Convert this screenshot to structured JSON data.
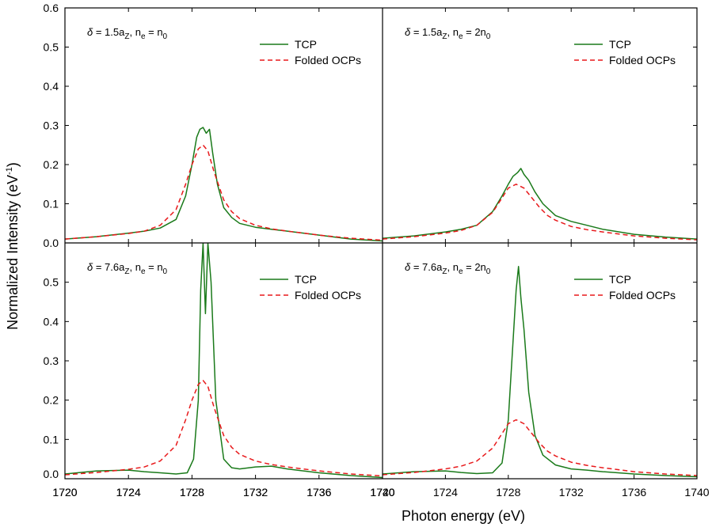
{
  "figure": {
    "xlabel": "Photon energy (eV)",
    "ylabel": "Normalized Intensity (eV",
    "ylabel_sup": "-1",
    "ylabel_close": ")"
  },
  "chart_data": [
    {
      "type": "line",
      "panel": "top-left",
      "annotation": "δ = 1.5a_Z, n_e = n_0",
      "annotation_parts": {
        "delta": "δ",
        "p1": " = 1.5a",
        "s1": "Z",
        "p2": ", n",
        "s2": "e",
        "p3": " = n",
        "s3": "0"
      },
      "xlim": [
        1720,
        1740
      ],
      "ylim": [
        0.0,
        0.6
      ],
      "xticks": [
        "1720",
        "1724",
        "1728",
        "1732",
        "1736",
        "1740"
      ],
      "yticks": [
        "0.0",
        "0.1",
        "0.2",
        "0.3",
        "0.4",
        "0.5",
        "0.6"
      ],
      "legend": {
        "position": "top-right",
        "entries": [
          "TCP",
          "Folded OCPs"
        ]
      },
      "series": [
        {
          "name": "TCP",
          "color": "#1a7a1a",
          "style": "solid",
          "x": [
            1720,
            1722,
            1724,
            1725,
            1726,
            1727,
            1727.6,
            1728.0,
            1728.3,
            1728.5,
            1728.7,
            1728.9,
            1729.1,
            1729.3,
            1729.6,
            1730.0,
            1730.5,
            1731,
            1732,
            1733,
            1734,
            1736,
            1738,
            1740
          ],
          "y": [
            0.01,
            0.016,
            0.025,
            0.03,
            0.038,
            0.06,
            0.12,
            0.2,
            0.27,
            0.29,
            0.295,
            0.28,
            0.29,
            0.23,
            0.15,
            0.09,
            0.065,
            0.05,
            0.04,
            0.035,
            0.03,
            0.02,
            0.01,
            0.005
          ]
        },
        {
          "name": "Folded OCPs",
          "color": "#e8191b",
          "style": "dashed",
          "x": [
            1720,
            1722,
            1724,
            1725,
            1726,
            1727,
            1727.6,
            1728.0,
            1728.4,
            1728.7,
            1729.0,
            1729.4,
            1730.0,
            1730.5,
            1731,
            1732,
            1733,
            1734,
            1736,
            1738,
            1740
          ],
          "y": [
            0.01,
            0.016,
            0.024,
            0.03,
            0.045,
            0.085,
            0.15,
            0.2,
            0.24,
            0.25,
            0.235,
            0.18,
            0.11,
            0.08,
            0.062,
            0.045,
            0.036,
            0.03,
            0.02,
            0.012,
            0.007
          ]
        }
      ]
    },
    {
      "type": "line",
      "panel": "top-right",
      "annotation": "δ = 1.5a_Z, n_e = 2n_0",
      "annotation_parts": {
        "delta": "δ",
        "p1": " = 1.5a",
        "s1": "Z",
        "p2": ", n",
        "s2": "e",
        "p3": " = 2n",
        "s3": "0"
      },
      "xlim": [
        1720,
        1740
      ],
      "ylim": [
        0.0,
        0.6
      ],
      "legend": {
        "position": "top-right",
        "entries": [
          "TCP",
          "Folded OCPs"
        ]
      },
      "series": [
        {
          "name": "TCP",
          "color": "#1a7a1a",
          "style": "solid",
          "x": [
            1720,
            1722,
            1724,
            1725,
            1726,
            1727,
            1727.6,
            1728.0,
            1728.3,
            1728.6,
            1728.8,
            1729.0,
            1729.3,
            1729.7,
            1730.2,
            1731,
            1732,
            1733,
            1734,
            1736,
            1738,
            1740
          ],
          "y": [
            0.012,
            0.018,
            0.028,
            0.035,
            0.045,
            0.08,
            0.12,
            0.15,
            0.17,
            0.18,
            0.19,
            0.175,
            0.16,
            0.13,
            0.1,
            0.07,
            0.055,
            0.045,
            0.035,
            0.022,
            0.015,
            0.01
          ]
        },
        {
          "name": "Folded OCPs",
          "color": "#e8191b",
          "style": "dashed",
          "x": [
            1720,
            1722,
            1724,
            1725,
            1726,
            1727,
            1727.6,
            1728.0,
            1728.5,
            1729.0,
            1729.5,
            1730.0,
            1730.5,
            1731,
            1732,
            1733,
            1734,
            1736,
            1738,
            1740
          ],
          "y": [
            0.01,
            0.016,
            0.025,
            0.032,
            0.045,
            0.078,
            0.115,
            0.14,
            0.15,
            0.14,
            0.115,
            0.09,
            0.07,
            0.058,
            0.042,
            0.034,
            0.028,
            0.018,
            0.012,
            0.008
          ]
        }
      ]
    },
    {
      "type": "line",
      "panel": "bottom-left",
      "annotation": "δ = 7.6a_Z, n_e = n_0",
      "annotation_parts": {
        "delta": "δ",
        "p1": " = 7.6a",
        "s1": "Z",
        "p2": ", n",
        "s2": "e",
        "p3": " = n",
        "s3": "0"
      },
      "xlim": [
        1720,
        1740
      ],
      "ylim": [
        0.0,
        0.6
      ],
      "xticks": [
        "1720",
        "1724",
        "1728",
        "1732",
        "1736",
        "1740"
      ],
      "yticks": [
        "0.0",
        "0.1",
        "0.2",
        "0.3",
        "0.4",
        "0.5"
      ],
      "legend": {
        "position": "top-right",
        "entries": [
          "TCP",
          "Folded OCPs"
        ]
      },
      "series": [
        {
          "name": "TCP",
          "color": "#1a7a1a",
          "style": "solid",
          "x": [
            1720,
            1722,
            1724,
            1725,
            1726,
            1727,
            1727.7,
            1728.1,
            1728.4,
            1728.55,
            1728.7,
            1728.85,
            1729.0,
            1729.2,
            1729.5,
            1730.0,
            1730.5,
            1731,
            1732,
            1733,
            1734,
            1736,
            1738,
            1740
          ],
          "y": [
            0.012,
            0.02,
            0.022,
            0.018,
            0.015,
            0.012,
            0.015,
            0.05,
            0.2,
            0.48,
            0.6,
            0.42,
            0.6,
            0.5,
            0.2,
            0.05,
            0.028,
            0.025,
            0.03,
            0.032,
            0.025,
            0.015,
            0.008,
            0.003
          ]
        },
        {
          "name": "Folded OCPs",
          "color": "#e8191b",
          "style": "dashed",
          "x": [
            1720,
            1722,
            1724,
            1725,
            1726,
            1727,
            1727.6,
            1728.0,
            1728.4,
            1728.7,
            1729.0,
            1729.4,
            1730.0,
            1730.5,
            1731,
            1732,
            1733,
            1734,
            1736,
            1738,
            1740
          ],
          "y": [
            0.01,
            0.016,
            0.024,
            0.03,
            0.045,
            0.085,
            0.15,
            0.2,
            0.24,
            0.25,
            0.235,
            0.18,
            0.11,
            0.08,
            0.062,
            0.045,
            0.036,
            0.03,
            0.02,
            0.012,
            0.007
          ]
        }
      ]
    },
    {
      "type": "line",
      "panel": "bottom-right",
      "annotation": "δ = 7.6a_Z, n_e = 2n_0",
      "annotation_parts": {
        "delta": "δ",
        "p1": " = 7.6a",
        "s1": "Z",
        "p2": ", n",
        "s2": "e",
        "p3": " = 2n",
        "s3": "0"
      },
      "xlim": [
        1720,
        1740
      ],
      "ylim": [
        0.0,
        0.6
      ],
      "xticks": [
        "1720",
        "1724",
        "1728",
        "1732",
        "1736",
        "1740"
      ],
      "legend": {
        "position": "top-right",
        "entries": [
          "TCP",
          "Folded OCPs"
        ]
      },
      "series": [
        {
          "name": "TCP",
          "color": "#1a7a1a",
          "style": "solid",
          "x": [
            1720,
            1722,
            1724,
            1725,
            1726,
            1727,
            1727.6,
            1728.0,
            1728.3,
            1728.5,
            1728.65,
            1728.8,
            1729.0,
            1729.3,
            1729.7,
            1730.2,
            1731,
            1732,
            1733,
            1734,
            1736,
            1738,
            1740
          ],
          "y": [
            0.012,
            0.018,
            0.02,
            0.016,
            0.013,
            0.015,
            0.04,
            0.15,
            0.35,
            0.48,
            0.54,
            0.46,
            0.38,
            0.22,
            0.11,
            0.06,
            0.035,
            0.025,
            0.022,
            0.018,
            0.012,
            0.008,
            0.005
          ]
        },
        {
          "name": "Folded OCPs",
          "color": "#e8191b",
          "style": "dashed",
          "x": [
            1720,
            1722,
            1724,
            1725,
            1726,
            1727,
            1727.6,
            1728.0,
            1728.5,
            1729.0,
            1729.5,
            1730.0,
            1730.5,
            1731,
            1732,
            1733,
            1734,
            1736,
            1738,
            1740
          ],
          "y": [
            0.01,
            0.016,
            0.025,
            0.032,
            0.045,
            0.078,
            0.115,
            0.14,
            0.15,
            0.14,
            0.115,
            0.09,
            0.07,
            0.058,
            0.042,
            0.034,
            0.028,
            0.018,
            0.012,
            0.008
          ]
        }
      ]
    }
  ]
}
